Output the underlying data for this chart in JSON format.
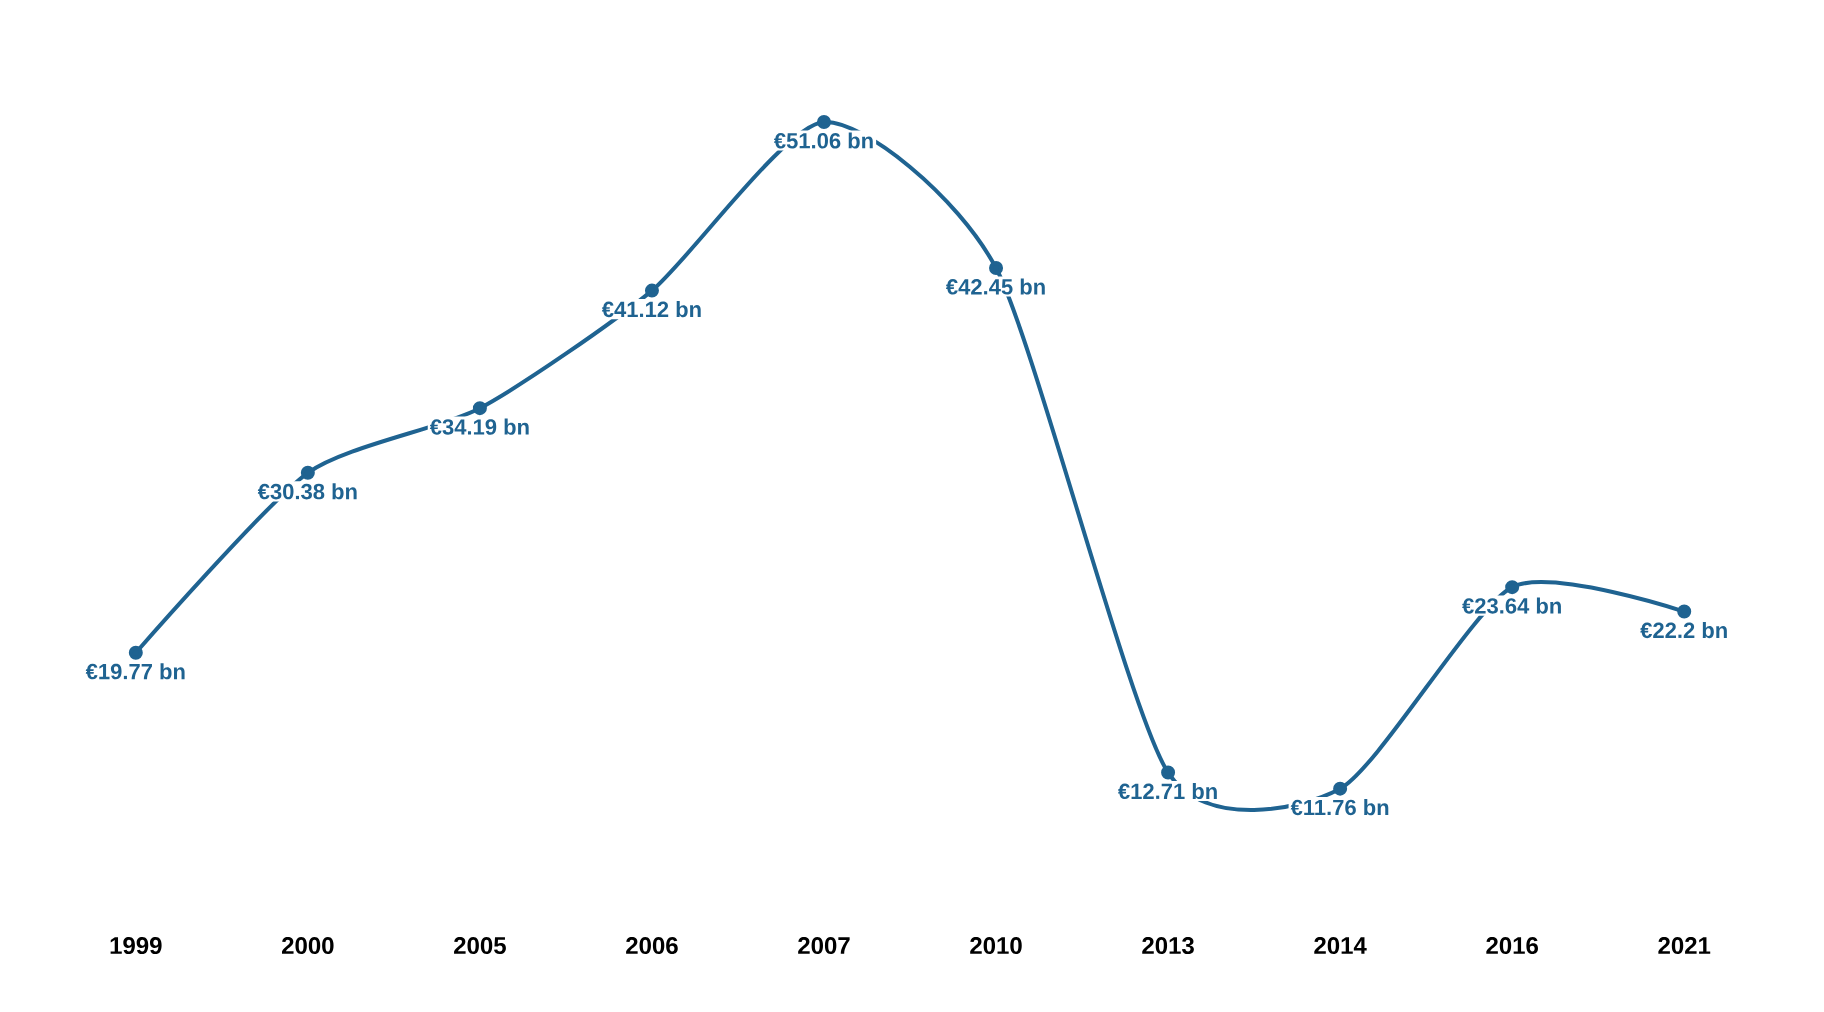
{
  "chart_data": {
    "type": "line",
    "categories": [
      "1999",
      "2000",
      "2005",
      "2006",
      "2007",
      "2010",
      "2013",
      "2014",
      "2016",
      "2021"
    ],
    "series": [
      {
        "color": "#1f6391",
        "values": [
          19.77,
          30.38,
          34.19,
          41.12,
          51.06,
          42.45,
          12.71,
          11.76,
          23.64,
          22.2
        ],
        "value_labels": [
          "€19.77 bn",
          "€30.38 bn",
          "€34.19 bn",
          "€41.12 bn",
          "€51.06 bn",
          "€42.45 bn",
          "€12.71 bn",
          "€11.76 bn",
          "€23.64 bn",
          "€22.2 bn"
        ]
      }
    ],
    "marker": "circle",
    "line_style": "solid"
  }
}
